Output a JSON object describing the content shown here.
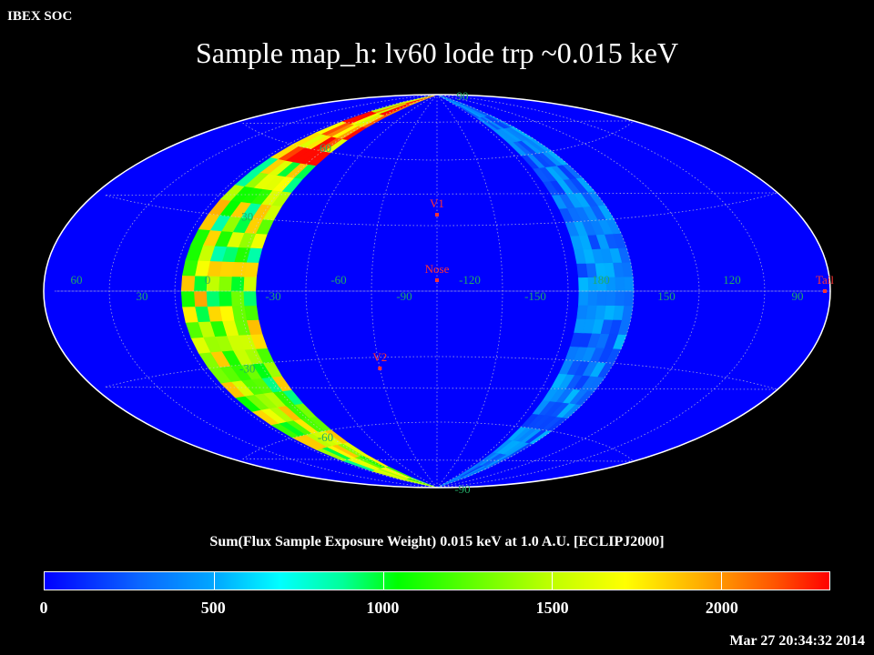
{
  "header": {
    "org": "IBEX SOC",
    "title": "Sample map_h: lv60 lode trp ~0.015 keV"
  },
  "footer": {
    "timestamp": "Mar 27 20:34:32 2014"
  },
  "colors": {
    "background": "#000000",
    "map_base": "#0000ff",
    "marker": "#ff3333",
    "grid_label": "#22aa66",
    "outline": "#ffffff"
  },
  "chart_data": {
    "type": "heatmap",
    "projection": "aitoff",
    "coordinate_system": "ECLIPJ2000",
    "grid": true,
    "lon_tick_labels": [
      "60",
      "30",
      "0",
      "-30",
      "-60",
      "-90",
      "-120",
      "-150",
      "180",
      "150",
      "120",
      "90"
    ],
    "lat_tick_labels": [
      "90",
      "60",
      "30",
      "-30",
      "-60",
      "-90"
    ],
    "markers": [
      {
        "label": "V1",
        "lon": -105,
        "lat": 35
      },
      {
        "label": "Nose",
        "lon": -105,
        "lat": 5
      },
      {
        "label": "V2",
        "lon": -75,
        "lat": -35
      },
      {
        "label": "Tail",
        "lon": 75,
        "lat": 0
      }
    ],
    "swaths": [
      {
        "lon_min": -22,
        "lon_max": 12,
        "value_range": [
          700,
          2300
        ],
        "typical_value": 1400
      },
      {
        "lon_min": 165,
        "lon_max": 190,
        "value_range": [
          100,
          650
        ],
        "typical_value": 350
      }
    ],
    "colorbar": {
      "label": "Sum(Flux Sample Exposure Weight)  0.015 keV at 1.0 A.U. [ECLIPJ2000]",
      "tick_labels": [
        "0",
        "500",
        "1000",
        "1500",
        "2000"
      ],
      "ticks": [
        0,
        500,
        1000,
        1500,
        2000
      ],
      "range": [
        0,
        2320
      ]
    }
  }
}
